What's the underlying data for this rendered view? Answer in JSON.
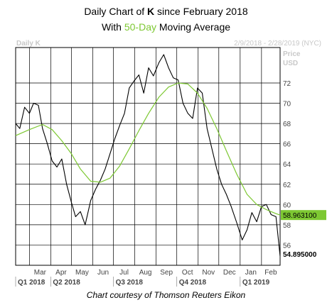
{
  "header": {
    "title_prefix": "Daily Chart of ",
    "title_ticker": "K",
    "title_suffix": " since February 2018",
    "subtitle_prefix": "With ",
    "subtitle_highlight": "50-Day",
    "subtitle_suffix": " Moving Average"
  },
  "credit": "Chart courtesy of Thomson Reuters Eikon",
  "chart_data": {
    "type": "line",
    "symbol": "Daily K",
    "date_range": "2/9/2018 - 2/28/2019 (NYC)",
    "ylabel": "Price",
    "yunit": "USD",
    "ylim": [
      54,
      75.5
    ],
    "yticks": [
      56,
      58,
      60,
      62,
      64,
      66,
      68,
      70,
      72
    ],
    "months": [
      "Mar",
      "Apr",
      "May",
      "Jun",
      "Jul",
      "Aug",
      "Sep",
      "Oct",
      "Nov",
      "Dec",
      "Jan",
      "Feb"
    ],
    "quarters": [
      "Q1 2018",
      "Q2 2018",
      "Q3 2018",
      "Q4 2018",
      "Q1 2019"
    ],
    "last_price": "54.895000",
    "ma_last": "58.963100",
    "series": [
      {
        "kind": "price",
        "x": [
          "2018-02-09",
          "2018-02-15",
          "2018-02-22",
          "2018-03-01",
          "2018-03-07",
          "2018-03-14",
          "2018-03-20",
          "2018-03-27",
          "2018-04-03",
          "2018-04-10",
          "2018-04-17",
          "2018-04-24",
          "2018-05-01",
          "2018-05-07",
          "2018-05-14",
          "2018-05-21",
          "2018-05-29",
          "2018-06-05",
          "2018-06-12",
          "2018-06-19",
          "2018-06-26",
          "2018-07-03",
          "2018-07-10",
          "2018-07-17",
          "2018-07-24",
          "2018-07-31",
          "2018-08-07",
          "2018-08-14",
          "2018-08-21",
          "2018-08-28",
          "2018-09-05",
          "2018-09-12",
          "2018-09-19",
          "2018-09-26",
          "2018-10-03",
          "2018-10-10",
          "2018-10-17",
          "2018-10-24",
          "2018-10-31",
          "2018-11-07",
          "2018-11-14",
          "2018-11-21",
          "2018-11-28",
          "2018-12-05",
          "2018-12-12",
          "2018-12-19",
          "2018-12-27",
          "2019-01-04",
          "2019-01-11",
          "2019-01-18",
          "2019-01-25",
          "2019-02-01",
          "2019-02-08",
          "2019-02-15",
          "2019-02-22",
          "2019-02-28"
        ],
        "y": [
          68.0,
          67.5,
          69.6,
          69.0,
          70.0,
          69.8,
          67.5,
          66.0,
          64.3,
          63.7,
          64.5,
          62.0,
          60.2,
          58.8,
          59.3,
          58.0,
          60.4,
          61.5,
          62.4,
          63.5,
          65.0,
          66.5,
          67.8,
          69.0,
          71.5,
          72.2,
          72.8,
          71.0,
          73.5,
          72.7,
          74.0,
          74.8,
          73.5,
          72.5,
          72.3,
          70.0,
          69.0,
          68.5,
          71.5,
          71.0,
          67.5,
          65.5,
          63.5,
          62.0,
          61.0,
          59.8,
          58.2,
          56.5,
          57.5,
          59.2,
          58.3,
          59.8,
          60.0,
          59.0,
          58.8,
          54.9
        ]
      },
      {
        "kind": "moving_average",
        "x": [
          "2018-02-09",
          "2018-03-01",
          "2018-03-20",
          "2018-04-03",
          "2018-04-17",
          "2018-05-01",
          "2018-05-14",
          "2018-05-29",
          "2018-06-12",
          "2018-06-26",
          "2018-07-10",
          "2018-07-24",
          "2018-08-07",
          "2018-08-21",
          "2018-09-05",
          "2018-09-19",
          "2018-10-03",
          "2018-10-17",
          "2018-10-31",
          "2018-11-14",
          "2018-11-28",
          "2018-12-12",
          "2018-12-27",
          "2019-01-11",
          "2019-01-25",
          "2019-02-08",
          "2019-02-22",
          "2019-02-28"
        ],
        "y": [
          66.8,
          67.4,
          67.9,
          67.4,
          66.3,
          65.0,
          63.5,
          62.3,
          62.2,
          62.6,
          63.8,
          65.5,
          67.3,
          69.0,
          70.6,
          71.6,
          72.0,
          71.9,
          71.0,
          69.5,
          67.5,
          65.3,
          63.0,
          61.0,
          60.0,
          59.5,
          59.1,
          58.96
        ]
      }
    ]
  },
  "colors": {
    "price": "#000000",
    "moving_average": "#7dc832",
    "grid": "#000000",
    "faint_label": "#c8c8c8",
    "tick_label": "#444444"
  }
}
